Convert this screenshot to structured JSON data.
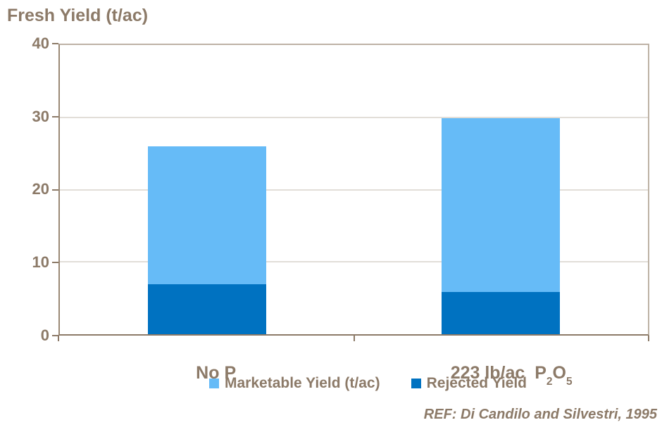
{
  "title": "Fresh Yield (t/ac)",
  "y_axis": {
    "max": 40,
    "labels": [
      "40",
      "30",
      "20",
      "10",
      "0"
    ]
  },
  "x_axis": {
    "labels": [
      {
        "text": "No P"
      },
      {
        "pre": "223 lb/ac  P",
        "sub1": "2",
        "mid": "O",
        "sub2": "5"
      }
    ]
  },
  "legend": {
    "items": [
      {
        "label": "Marketable Yield (t/ac)",
        "color": "#66BBF7"
      },
      {
        "label": "Rejected Yield",
        "color": "#0072C1"
      }
    ]
  },
  "footnote": "REF: Di Candilo and Silvestri, 1995",
  "colors": {
    "text": "#8C7A68",
    "axis_dark": "#8C7A68",
    "axis_light": "#BDB2A5",
    "gridline": "#C6BCB2",
    "marketable_blue": "#66BBF7",
    "rejected_blue": "#0072C1"
  },
  "chart_data": {
    "type": "bar",
    "stacked": true,
    "title": "Fresh Yield (t/ac)",
    "ylabel": "Fresh Yield (t/ac)",
    "categories": [
      "No P",
      "223 lb/ac P2O5"
    ],
    "series": [
      {
        "name": "Rejected Yield",
        "color": "#0072C1",
        "values": [
          6.9,
          5.8
        ]
      },
      {
        "name": "Marketable Yield (t/ac)",
        "color": "#66BBF7",
        "values": [
          19.1,
          24.1
        ]
      }
    ],
    "totals": [
      26.0,
      29.9
    ],
    "ylim": [
      0,
      40
    ],
    "yticks": [
      0,
      10,
      20,
      30,
      40
    ],
    "grid": true,
    "legend_position": "bottom",
    "annotation": "REF: Di Candilo and Silvestri, 1995"
  }
}
